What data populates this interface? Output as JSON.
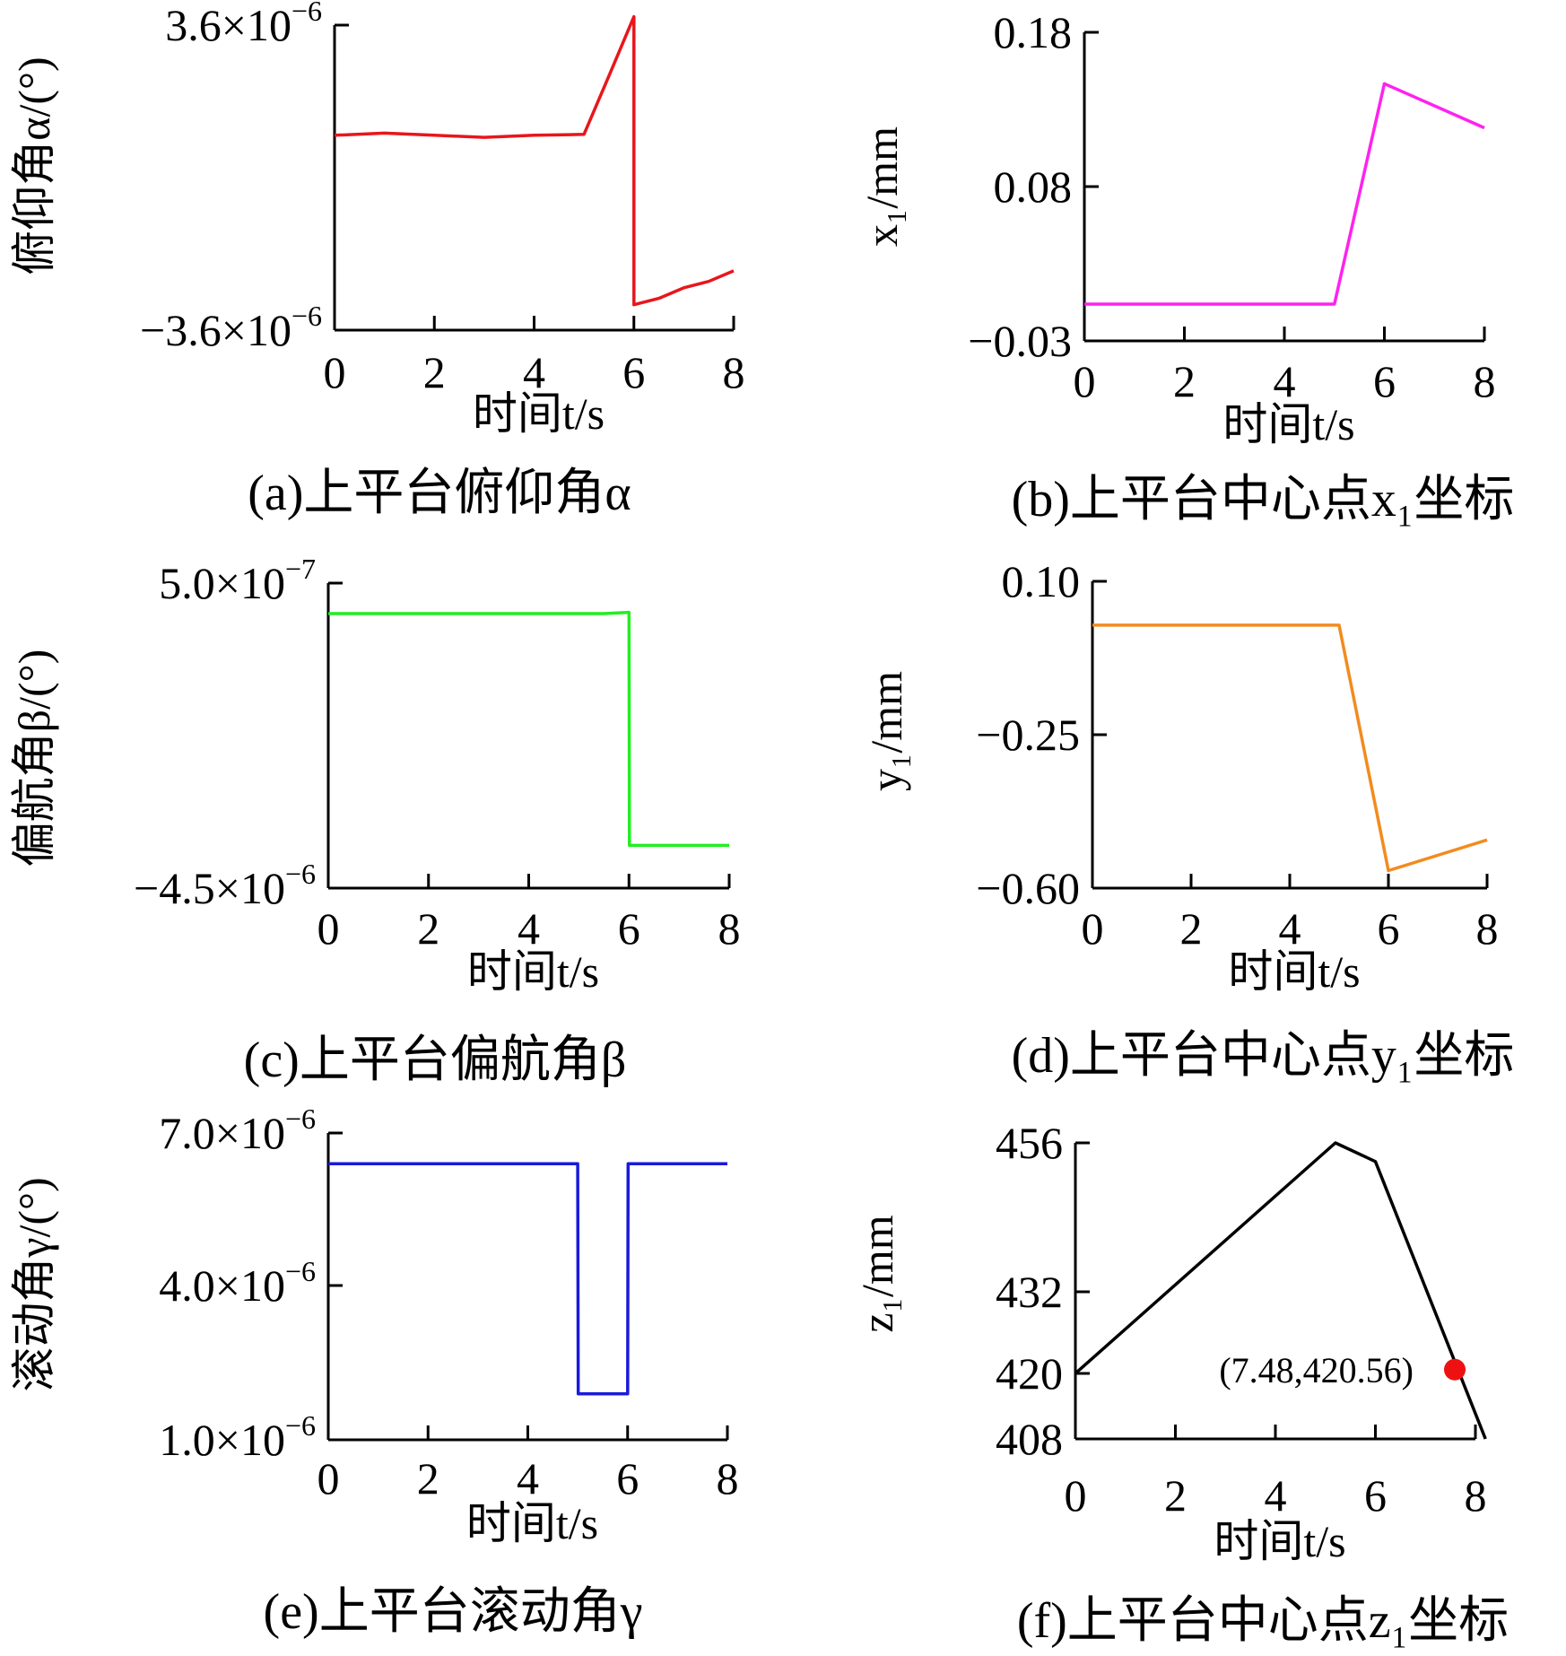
{
  "chart_data": [
    {
      "id": "a",
      "type": "line",
      "caption": "(a)上平台俯仰角α",
      "xlabel": "时间t/s",
      "ylabel": "俯仰角α/(°)",
      "xticks": [
        "0",
        "2",
        "4",
        "6",
        "8"
      ],
      "yticks": [
        {
          "mant": "3.6×10",
          "exp": "−6",
          "value": 3.6
        },
        {
          "mant": "−3.6×10",
          "exp": "−6",
          "value": -3.6
        }
      ],
      "xlim": [
        0,
        8
      ],
      "ylim": [
        -3.6,
        3.6
      ],
      "color": "#e8161b",
      "series": [
        {
          "x": [
            0,
            1,
            2,
            3,
            4,
            5,
            5.5,
            6,
            6.001,
            6.5,
            7,
            7.5,
            8
          ],
          "y": [
            1.0,
            1.05,
            1.0,
            0.95,
            1.0,
            1.02,
            2.4,
            3.8,
            -3.0,
            -2.85,
            -2.6,
            -2.45,
            -2.2
          ]
        }
      ]
    },
    {
      "id": "b",
      "type": "line",
      "caption": "(b)上平台中心点x₁坐标",
      "xlabel": "时间t/s",
      "ylabel": "x₁/mm",
      "xticks": [
        "0",
        "2",
        "4",
        "6",
        "8"
      ],
      "yticks": [
        {
          "mant": "0.18",
          "exp": "",
          "value": 0.18
        },
        {
          "mant": "0.08",
          "exp": "",
          "value": 0.08
        },
        {
          "mant": "−0.03",
          "exp": "",
          "value": -0.03
        }
      ],
      "xlim": [
        0,
        8
      ],
      "ylim": [
        -0.03,
        0.18
      ],
      "color": "#ff22ee",
      "series": [
        {
          "x": [
            0,
            5,
            6,
            8
          ],
          "y": [
            -0.005,
            -0.005,
            0.145,
            0.115
          ]
        }
      ]
    },
    {
      "id": "c",
      "type": "line",
      "caption": "(c)上平台偏航角β",
      "xlabel": "时间t/s",
      "ylabel": "偏航角β/(°)",
      "xticks": [
        "0",
        "2",
        "4",
        "6",
        "8"
      ],
      "yticks": [
        {
          "mant": "5.0×10",
          "exp": "−7",
          "value": 0.5
        },
        {
          "mant": "−4.5×10",
          "exp": "−6",
          "value": -4.5
        }
      ],
      "xlim": [
        0,
        8
      ],
      "ylim": [
        -4.5,
        0.5
      ],
      "color": "#22ee22",
      "series": [
        {
          "x": [
            0,
            5.5,
            6,
            6.01,
            8
          ],
          "y": [
            0.0,
            0.0,
            0.02,
            -3.8,
            -3.8
          ]
        }
      ]
    },
    {
      "id": "d",
      "type": "line",
      "caption": "(d)上平台中心点y₁坐标",
      "xlabel": "时间t/s",
      "ylabel": "y₁/mm",
      "xticks": [
        "0",
        "2",
        "4",
        "6",
        "8"
      ],
      "yticks": [
        {
          "mant": "0.10",
          "exp": "",
          "value": 0.1
        },
        {
          "mant": "−0.25",
          "exp": "",
          "value": -0.25
        },
        {
          "mant": "−0.60",
          "exp": "",
          "value": -0.6
        }
      ],
      "xlim": [
        0,
        8
      ],
      "ylim": [
        -0.6,
        0.1
      ],
      "color": "#f28b1f",
      "series": [
        {
          "x": [
            0,
            5,
            6,
            8
          ],
          "y": [
            0.0,
            0.0,
            -0.56,
            -0.49
          ]
        }
      ]
    },
    {
      "id": "e",
      "type": "line",
      "caption": "(e)上平台滚动角γ",
      "xlabel": "时间t/s",
      "ylabel": "滚动角γ/(°)",
      "xticks": [
        "0",
        "2",
        "4",
        "6",
        "8"
      ],
      "yticks": [
        {
          "mant": "7.0×10",
          "exp": "−6",
          "value": 7.0
        },
        {
          "mant": "4.0×10",
          "exp": "−6",
          "value": 4.0
        },
        {
          "mant": "1.0×10",
          "exp": "−6",
          "value": 1.0
        }
      ],
      "xlim": [
        0,
        8
      ],
      "ylim": [
        1.0,
        7.0
      ],
      "color": "#1a1adb",
      "series": [
        {
          "x": [
            0,
            5,
            5.01,
            6,
            6.01,
            8
          ],
          "y": [
            6.4,
            6.4,
            1.9,
            1.9,
            6.4,
            6.4
          ]
        }
      ]
    },
    {
      "id": "f",
      "type": "line",
      "caption": "(f)上平台中心点z₁坐标",
      "xlabel": "时间t/s",
      "ylabel": "z₁/mm",
      "xticks": [
        "0",
        "2",
        "4",
        "6",
        "8"
      ],
      "yticks": [
        {
          "mant": "456",
          "exp": "",
          "value": 456
        },
        {
          "mant": "432",
          "exp": "",
          "value": 432
        },
        {
          "mant": "420",
          "exp": "",
          "value": 420
        },
        {
          "mant": "408",
          "exp": "",
          "value": 408
        }
      ],
      "xlim": [
        0,
        8
      ],
      "ylim": [
        408,
        456
      ],
      "color": "#000000",
      "series": [
        {
          "x": [
            0,
            5.2,
            6.0,
            8.2
          ],
          "y": [
            420,
            456,
            453,
            408
          ]
        }
      ],
      "annotation": {
        "label": "(7.48,420.56)",
        "x": 7.48,
        "y": 420.56,
        "color": "#ee1111"
      }
    }
  ]
}
